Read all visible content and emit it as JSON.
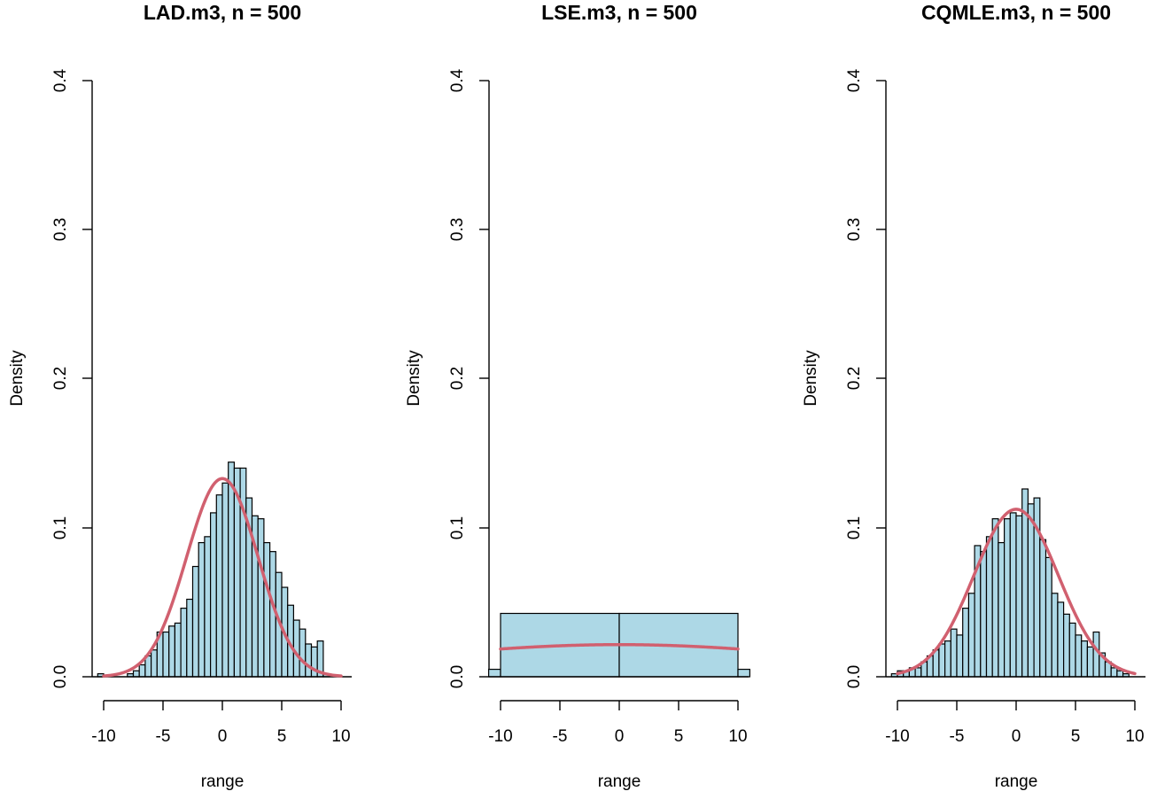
{
  "chart_data": [
    {
      "type": "histogram",
      "title": "LAD.m3, n = 500",
      "xlabel": "range",
      "ylabel": "Density",
      "xlim": [
        -11,
        11
      ],
      "ylim": [
        0,
        0.4
      ],
      "xticks": [
        -10,
        -5,
        0,
        5,
        10
      ],
      "xtick_labels": [
        "-10",
        "-5",
        "0",
        "5",
        "10"
      ],
      "yticks": [
        0,
        0.1,
        0.2,
        0.3,
        0.4
      ],
      "ytick_labels": [
        "0.0",
        "0.1",
        "0.2",
        "0.3",
        "0.4"
      ],
      "bin_width": 0.5,
      "bin_start": -10.5,
      "bin_densities": [
        0.002,
        0,
        0,
        0,
        0,
        0.002,
        0.004,
        0.008,
        0.014,
        0.018,
        0.03,
        0.03,
        0.034,
        0.036,
        0.046,
        0.052,
        0.074,
        0.09,
        0.094,
        0.11,
        0.122,
        0.13,
        0.144,
        0.14,
        0.14,
        0.12,
        0.108,
        0.106,
        0.09,
        0.084,
        0.07,
        0.06,
        0.048,
        0.038,
        0.032,
        0.022,
        0.02,
        0.024,
        0.002
      ],
      "curve": {
        "type": "normal",
        "mean": 0,
        "sd": 3.0,
        "x_range": [
          -10,
          10
        ]
      },
      "bar_color": "#ADD8E6",
      "curve_color": "#D1606F"
    },
    {
      "type": "histogram",
      "title": "LSE.m3, n = 500",
      "xlabel": "range",
      "ylabel": "Density",
      "xlim": [
        -11,
        11
      ],
      "ylim": [
        0,
        0.4
      ],
      "xticks": [
        -10,
        -5,
        0,
        5,
        10
      ],
      "xtick_labels": [
        "-10",
        "-5",
        "0",
        "5",
        "10"
      ],
      "yticks": [
        0,
        0.1,
        0.2,
        0.3,
        0.4
      ],
      "ytick_labels": [
        "0.0",
        "0.1",
        "0.2",
        "0.3",
        "0.4"
      ],
      "bin_edges": [
        -11,
        -10,
        0,
        10,
        11
      ],
      "bin_densities": [
        0.005,
        0.0425,
        0.0425,
        0.005
      ],
      "curve": {
        "type": "normal",
        "mean": 0,
        "sd": 18.5,
        "x_range": [
          -10,
          10
        ]
      },
      "bar_color": "#ADD8E6",
      "curve_color": "#D1606F"
    },
    {
      "type": "histogram",
      "title": "CQMLE.m3, n = 500",
      "xlabel": "range",
      "ylabel": "Density",
      "xlim": [
        -11,
        11
      ],
      "ylim": [
        0,
        0.4
      ],
      "xticks": [
        -10,
        -5,
        0,
        5,
        10
      ],
      "xtick_labels": [
        "-10",
        "-5",
        "0",
        "5",
        "10"
      ],
      "yticks": [
        0,
        0.1,
        0.2,
        0.3,
        0.4
      ],
      "ytick_labels": [
        "0.0",
        "0.1",
        "0.2",
        "0.3",
        "0.4"
      ],
      "bin_width": 0.5,
      "bin_start": -10.5,
      "bin_densities": [
        0.002,
        0.004,
        0.004,
        0.006,
        0.006,
        0.01,
        0.014,
        0.018,
        0.022,
        0.024,
        0.032,
        0.028,
        0.046,
        0.056,
        0.088,
        0.084,
        0.094,
        0.106,
        0.09,
        0.106,
        0.11,
        0.108,
        0.126,
        0.116,
        0.12,
        0.092,
        0.08,
        0.056,
        0.05,
        0.042,
        0.036,
        0.028,
        0.024,
        0.02,
        0.03,
        0.016,
        0.01,
        0.006,
        0.004,
        0.002
      ],
      "curve": {
        "type": "normal",
        "mean": 0,
        "sd": 3.55,
        "x_range": [
          -10,
          10
        ]
      },
      "bar_color": "#ADD8E6",
      "curve_color": "#D1606F"
    }
  ]
}
